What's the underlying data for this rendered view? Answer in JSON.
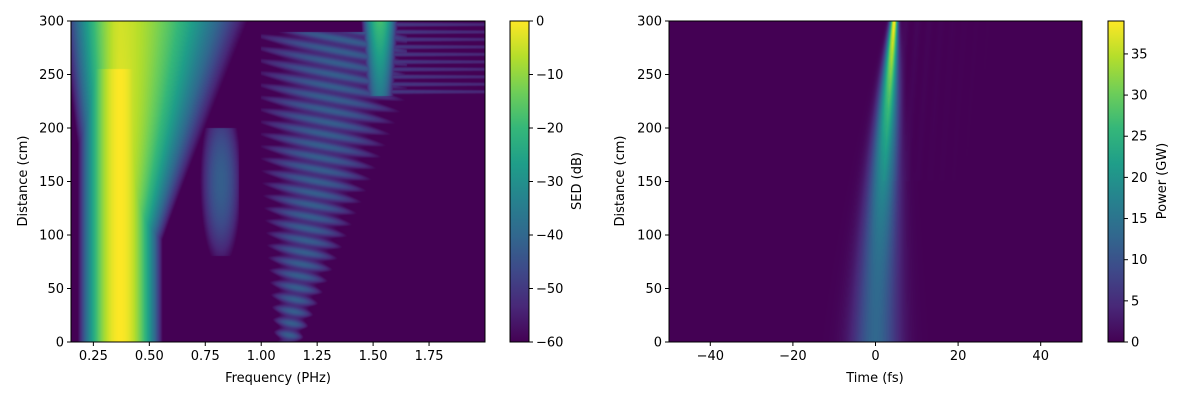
{
  "chart_data": [
    {
      "type": "heatmap",
      "title": "",
      "xlabel": "Frequency (PHz)",
      "ylabel": "Distance (cm)",
      "xlim": [
        0.15,
        2.0
      ],
      "ylim": [
        0,
        300
      ],
      "xticks": [
        0.25,
        0.5,
        0.75,
        1.0,
        1.25,
        1.5,
        1.75
      ],
      "xtick_labels": [
        "0.25",
        "0.50",
        "0.75",
        "1.00",
        "1.25",
        "1.50",
        "1.75"
      ],
      "yticks": [
        0,
        50,
        100,
        150,
        200,
        250,
        300
      ],
      "ytick_labels": [
        "0",
        "50",
        "100",
        "150",
        "200",
        "250",
        "300"
      ],
      "colormap": "viridis",
      "colorbar": {
        "label": "SED (dB)",
        "range": [
          -60,
          0
        ],
        "ticks": [
          0,
          -10,
          -20,
          -30,
          -40,
          -50,
          -60
        ],
        "tick_labels": [
          "0",
          "−10",
          "−20",
          "−30",
          "−40",
          "−50",
          "−60"
        ]
      },
      "features": [
        {
          "kind": "pump_ridge",
          "center_freq": 0.37,
          "note": "bright band, dB near 0"
        },
        {
          "kind": "dispersive_wave",
          "freq_range": [
            1.0,
            1.6
          ],
          "distance_range": [
            0,
            300
          ]
        }
      ]
    },
    {
      "type": "heatmap",
      "title": "",
      "xlabel": "Time (fs)",
      "ylabel": "Distance (cm)",
      "xlim": [
        -50,
        50
      ],
      "ylim": [
        0,
        300
      ],
      "xticks": [
        -40,
        -20,
        0,
        20,
        40
      ],
      "xtick_labels": [
        "−40",
        "−20",
        "0",
        "20",
        "40"
      ],
      "yticks": [
        0,
        50,
        100,
        150,
        200,
        250,
        300
      ],
      "ytick_labels": [
        "0",
        "50",
        "100",
        "150",
        "200",
        "250",
        "300"
      ],
      "colormap": "viridis",
      "colorbar": {
        "label": "Power (GW)",
        "range": [
          0,
          39
        ],
        "ticks": [
          0,
          5,
          10,
          15,
          20,
          25,
          30,
          35
        ],
        "tick_labels": [
          "0",
          "5",
          "10",
          "15",
          "20",
          "25",
          "30",
          "35"
        ]
      },
      "features": [
        {
          "kind": "pulse_trace",
          "time_at_0cm": 0,
          "time_at_300cm": 4.5,
          "peak_power": 39
        }
      ]
    }
  ],
  "colors": {
    "viridis": [
      "#440154",
      "#482878",
      "#3e4989",
      "#31688e",
      "#26828e",
      "#1f9e89",
      "#35b779",
      "#6ece58",
      "#b5de2b",
      "#fde725"
    ]
  }
}
